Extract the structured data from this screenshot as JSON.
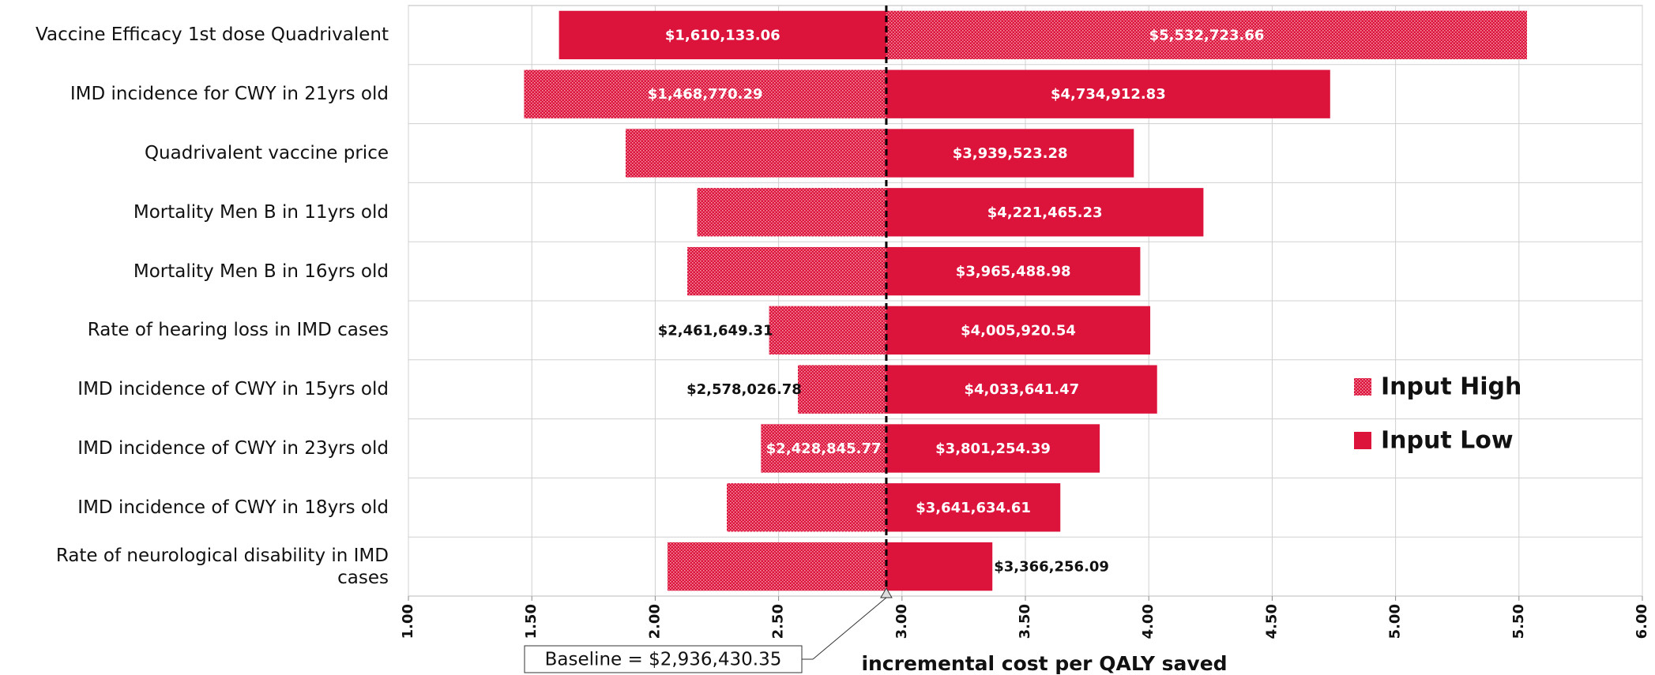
{
  "chart_data": {
    "type": "tornado",
    "categories": [
      "Vaccine Efficacy 1st dose Quadrivalent",
      "IMD incidence for CWY in 21yrs old",
      "Quadrivalent vaccine price",
      "Mortality Men B in 11yrs old",
      "Mortality Men B in 16yrs old",
      "Rate of hearing loss in IMD cases",
      "IMD incidence of CWY in 15yrs old",
      "IMD incidence of CWY in 23yrs old",
      "IMD incidence of CWY in 18yrs old",
      "Rate of neurological disability in IMD cases"
    ],
    "series": [
      {
        "name": "Input High",
        "color": "#dc143c",
        "pattern": true,
        "values": [
          5.53272366,
          1.46877029,
          1.88,
          2.17,
          2.13,
          2.46164931,
          2.57802678,
          2.42884577,
          2.29,
          2.05
        ],
        "value_labels": [
          "$5,532,723.66",
          "$1,468,770.29",
          null,
          null,
          null,
          "$2,461,649.31",
          "$2,578,026.78",
          "$2,428,845.77",
          null,
          null
        ]
      },
      {
        "name": "Input Low",
        "color": "#dc143c",
        "pattern": false,
        "values": [
          1.61013306,
          4.73491283,
          3.93952328,
          4.22146523,
          3.96548898,
          4.00592054,
          4.03364147,
          3.80125439,
          3.64163461,
          3.36625609
        ],
        "value_labels": [
          "$1,610,133.06",
          "$4,734,912.83",
          "$3,939,523.28",
          "$4,221,465.23",
          "$3,965,488.98",
          "$4,005,920.54",
          "$4,033,641.47",
          "$3,801,254.39",
          "$3,641,634.61",
          "$3,366,256.09"
        ]
      }
    ],
    "baseline": 2.93643035,
    "baseline_label": "Baseline = $2,936,430.35",
    "xlabel": "incremental cost per QALY saved",
    "xlim": [
      1,
      6
    ],
    "xticks": [
      {
        "value": 1,
        "label": "1.00"
      },
      {
        "value": 1.5,
        "label": "1.50"
      },
      {
        "value": 2,
        "label": "2.00"
      },
      {
        "value": 2.5,
        "label": "2.50"
      },
      {
        "value": 3,
        "label": "3.00"
      },
      {
        "value": 3.5,
        "label": "3.50"
      },
      {
        "value": 4,
        "label": "4.00"
      },
      {
        "value": 4.5,
        "label": "4.50"
      },
      {
        "value": 5,
        "label": "5.00"
      },
      {
        "value": 5.5,
        "label": "5.50"
      },
      {
        "value": 6,
        "label": "6.00"
      }
    ],
    "grid": true,
    "legend": "right"
  }
}
